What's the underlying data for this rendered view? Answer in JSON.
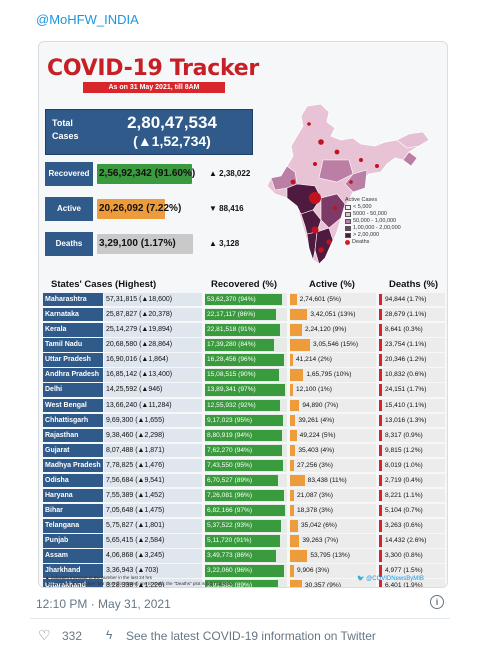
{
  "tweet": {
    "handle": "@MoHFW_INDIA",
    "timestamp": "12:10 PM · May 31, 2021",
    "likes": "332",
    "covid_link": "See the latest COVID-19 information on Twitter"
  },
  "tracker": {
    "title": "COVID-19 Tracker",
    "subtitle": "As on 31 May 2021, till 8AM",
    "total": {
      "label": "Total Cases",
      "value": "2,80,47,534",
      "delta": "(▲1,52,734)"
    },
    "stats": [
      {
        "label": "Recovered",
        "value": "2,56,92,342 (91.60%)",
        "delta": "▲ 2,38,022",
        "color": "#3a9a3e",
        "share": 0.916
      },
      {
        "label": "Active",
        "value": "20,26,092 (7.22%)",
        "delta": "▼ 88,416",
        "color": "#ee9b3b",
        "share": 0.65
      },
      {
        "label": "Deaths",
        "value": "3,29,100 (1.17%)",
        "delta": "▲ 3,128",
        "color": "#c9c9c9",
        "share": 0.92
      }
    ],
    "legend": {
      "title": "Active Cases",
      "items": [
        {
          "label": "< 5,000",
          "color": "#fbeef3"
        },
        {
          "label": "5000 - 50,000",
          "color": "#e5bfd4"
        },
        {
          "label": "50,000 - 1,00,000",
          "color": "#bb7ea5"
        },
        {
          "label": "1,00,000 - 2,00,000",
          "color": "#7d3a67"
        },
        {
          "label": "> 2,00,000",
          "color": "#4e1a3f"
        }
      ],
      "deaths_label": "Deaths"
    },
    "table": {
      "headers": [
        "States' Cases (Highest)",
        "Recovered (%)",
        "Active (%)",
        "Deaths (%)"
      ],
      "rows": [
        {
          "state": "Maharashtra",
          "cases": "57,31,815 (▲18,600)",
          "recovered": "53,62,370 (94%)",
          "active": "2,74,601 (5%)",
          "deaths": "94,844 (1.7%)",
          "rec_pct": 94,
          "act_pct": 5,
          "dth_pct": 1.7
        },
        {
          "state": "Karnataka",
          "cases": "25,87,827 (▲20,378)",
          "recovered": "22,17,117 (86%)",
          "active": "3,42,051 (13%)",
          "deaths": "28,679 (1.1%)",
          "rec_pct": 86,
          "act_pct": 13,
          "dth_pct": 1.1
        },
        {
          "state": "Kerala",
          "cases": "25,14,279 (▲19,894)",
          "recovered": "22,81,518 (91%)",
          "active": "2,24,120 (9%)",
          "deaths": "8,641 (0.3%)",
          "rec_pct": 91,
          "act_pct": 9,
          "dth_pct": 0.3
        },
        {
          "state": "Tamil Nadu",
          "cases": "20,68,580 (▲28,864)",
          "recovered": "17,39,280 (84%)",
          "active": "3,05,546 (15%)",
          "deaths": "23,754 (1.1%)",
          "rec_pct": 84,
          "act_pct": 15,
          "dth_pct": 1.1
        },
        {
          "state": "Uttar Pradesh",
          "cases": "16,90,016 (▲1,864)",
          "recovered": "16,28,456 (96%)",
          "active": "41,214 (2%)",
          "deaths": "20,346 (1.2%)",
          "rec_pct": 96,
          "act_pct": 2,
          "dth_pct": 1.2
        },
        {
          "state": "Andhra Pradesh",
          "cases": "16,85,142 (▲13,400)",
          "recovered": "15,08,515 (90%)",
          "active": "1,65,795 (10%)",
          "deaths": "10,832 (0.6%)",
          "rec_pct": 90,
          "act_pct": 10,
          "dth_pct": 0.6
        },
        {
          "state": "Delhi",
          "cases": "14,25,592 (▲946)",
          "recovered": "13,89,341 (97%)",
          "active": "12,100 (1%)",
          "deaths": "24,151 (1.7%)",
          "rec_pct": 97,
          "act_pct": 1,
          "dth_pct": 1.7
        },
        {
          "state": "West Bengal",
          "cases": "13,66,240 (▲11,284)",
          "recovered": "12,55,932 (92%)",
          "active": "94,890 (7%)",
          "deaths": "15,410 (1.1%)",
          "rec_pct": 92,
          "act_pct": 7,
          "dth_pct": 1.1
        },
        {
          "state": "Chhattisgarh",
          "cases": "9,69,300 (▲1,655)",
          "recovered": "9,17,023 (95%)",
          "active": "39,261 (4%)",
          "deaths": "13,016 (1.3%)",
          "rec_pct": 95,
          "act_pct": 4,
          "dth_pct": 1.3
        },
        {
          "state": "Rajasthan",
          "cases": "9,38,460 (▲2,298)",
          "recovered": "8,80,919 (94%)",
          "active": "49,224 (5%)",
          "deaths": "8,317 (0.9%)",
          "rec_pct": 94,
          "act_pct": 5,
          "dth_pct": 0.9
        },
        {
          "state": "Gujarat",
          "cases": "8,07,488 (▲1,871)",
          "recovered": "7,62,270 (94%)",
          "active": "35,403 (4%)",
          "deaths": "9,815 (1.2%)",
          "rec_pct": 94,
          "act_pct": 4,
          "dth_pct": 1.2
        },
        {
          "state": "Madhya Pradesh",
          "cases": "7,78,825 (▲1,476)",
          "recovered": "7,43,550 (95%)",
          "active": "27,256 (3%)",
          "deaths": "8,019 (1.0%)",
          "rec_pct": 95,
          "act_pct": 3,
          "dth_pct": 1.0
        },
        {
          "state": "Odisha",
          "cases": "7,56,684 (▲9,541)",
          "recovered": "6,70,527 (89%)",
          "active": "83,438 (11%)",
          "deaths": "2,719 (0.4%)",
          "rec_pct": 89,
          "act_pct": 11,
          "dth_pct": 0.4
        },
        {
          "state": "Haryana",
          "cases": "7,55,389 (▲1,452)",
          "recovered": "7,26,081 (96%)",
          "active": "21,087 (3%)",
          "deaths": "8,221 (1.1%)",
          "rec_pct": 96,
          "act_pct": 3,
          "dth_pct": 1.1
        },
        {
          "state": "Bihar",
          "cases": "7,05,648 (▲1,475)",
          "recovered": "6,82,166 (97%)",
          "active": "18,378 (3%)",
          "deaths": "5,104 (0.7%)",
          "rec_pct": 97,
          "act_pct": 3,
          "dth_pct": 0.7
        },
        {
          "state": "Telangana",
          "cases": "5,75,827 (▲1,801)",
          "recovered": "5,37,522 (93%)",
          "active": "35,042 (6%)",
          "deaths": "3,263 (0.6%)",
          "rec_pct": 93,
          "act_pct": 6,
          "dth_pct": 0.6
        },
        {
          "state": "Punjab",
          "cases": "5,65,415 (▲2,584)",
          "recovered": "5,11,720 (91%)",
          "active": "39,263 (7%)",
          "deaths": "14,432 (2.6%)",
          "rec_pct": 91,
          "act_pct": 7,
          "dth_pct": 2.6
        },
        {
          "state": "Assam",
          "cases": "4,06,868 (▲3,245)",
          "recovered": "3,49,773 (86%)",
          "active": "53,795 (13%)",
          "deaths": "3,300 (0.8%)",
          "rec_pct": 86,
          "act_pct": 13,
          "dth_pct": 0.8
        },
        {
          "state": "Jharkhand",
          "cases": "3,36,943 (▲703)",
          "recovered": "3,22,060 (96%)",
          "active": "9,906 (3%)",
          "deaths": "4,977 (1.5%)",
          "rec_pct": 96,
          "act_pct": 3,
          "dth_pct": 1.5
        },
        {
          "state": "Uttarakhand",
          "cases": "3,28,338 (▲1,226)",
          "recovered": "2,91,580 (89%)",
          "active": "30,357 (9%)",
          "deaths": "6,401 (1.9%)",
          "rec_pct": 89,
          "act_pct": 9,
          "dth_pct": 1.9
        }
      ]
    },
    "footnote_1": "▲ indicates increase in the number in the last 24 hrs",
    "footnote_2": "\"Recovered\" and \"Active\" bar plots (for states) are to scale; the \"Deaths\" plot is NOT to scale",
    "credit": "@COVIDNewsByMIB"
  }
}
